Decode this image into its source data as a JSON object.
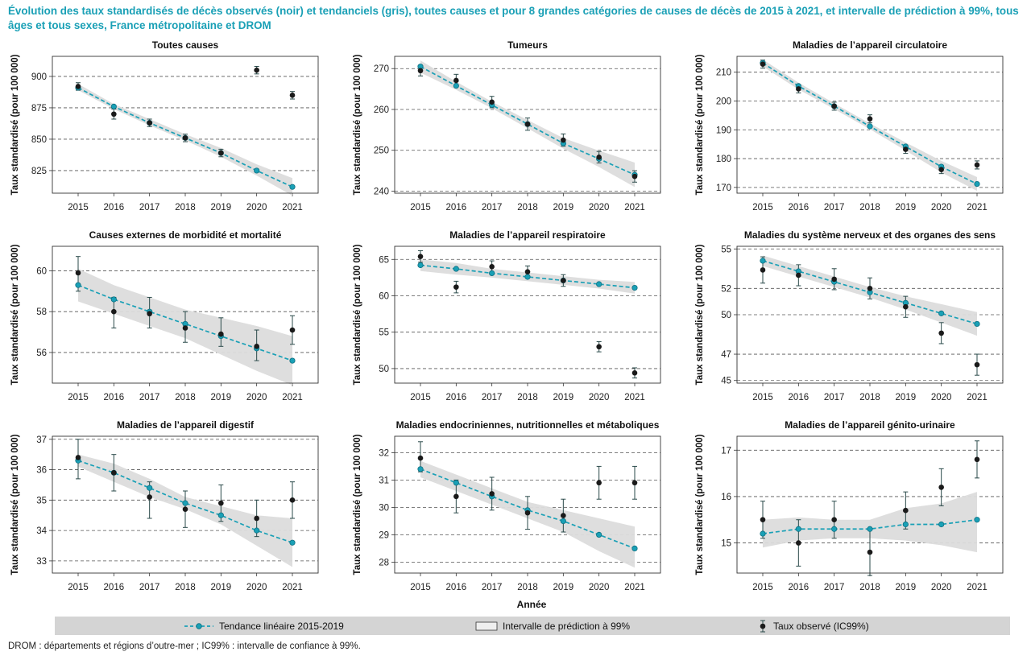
{
  "title": "Évolution des taux standardisés de décès observés (noir) et tendanciels (gris), toutes causes et pour 8 grandes catégories de causes de décès de 2015 à 2021, et intervalle de prédiction à 99%, tous âges et tous sexes, France métropolitaine et DROM",
  "x_axis_label": "Année",
  "colors": {
    "accent": "#1aa0b6",
    "trend": "#1aa0b6",
    "band": "#dcdcdc",
    "observed": "#1a1a1a",
    "error_bar": "#2a4a4a",
    "legend_bg": "#d4d4d4"
  },
  "legend": {
    "trend": "Tendance linéaire 2015-2019",
    "band": "Intervalle de prédiction à 99%",
    "observed": "Taux observé (IC99%)"
  },
  "footnote": "DROM : départements et régions d’outre-mer ; IC99% : intervalle de confiance à 99%.",
  "chart_data": [
    {
      "type": "line",
      "title": "Toutes causes",
      "ylabel": "Taux standardisé (pour 100 000)",
      "x": [
        2015,
        2016,
        2017,
        2018,
        2019,
        2020,
        2021
      ],
      "ylim": [
        807,
        916
      ],
      "yticks": [
        825,
        850,
        875,
        900
      ],
      "trend": [
        891,
        876,
        863,
        851,
        839,
        825,
        812
      ],
      "band_low": [
        889,
        874,
        861,
        849,
        836,
        821,
        805
      ],
      "band_high": [
        894,
        878,
        866,
        854,
        843,
        830,
        819
      ],
      "observed": [
        892,
        870,
        863,
        851,
        839,
        905,
        885
      ],
      "ci_low": [
        889,
        866,
        860,
        848,
        836,
        902,
        882
      ],
      "ci_high": [
        895,
        874,
        866,
        854,
        842,
        908,
        888
      ]
    },
    {
      "type": "line",
      "title": "Tumeurs",
      "ylabel": "Taux standardisé (pour 100 000)",
      "x": [
        2015,
        2016,
        2017,
        2018,
        2019,
        2020,
        2021
      ],
      "ylim": [
        239.5,
        273
      ],
      "yticks": [
        240,
        250,
        260,
        270
      ],
      "trend": [
        270.5,
        265.8,
        261.1,
        256.4,
        251.7,
        247.9,
        244
      ],
      "band_low": [
        269,
        264.8,
        260.3,
        255.4,
        250.4,
        245.9,
        241
      ],
      "band_high": [
        272,
        266.8,
        261.9,
        257.4,
        253,
        249.9,
        247
      ],
      "observed": [
        269.5,
        267.1,
        261.8,
        256.4,
        252.5,
        248.3,
        243.6
      ],
      "ci_low": [
        268.2,
        265.6,
        260.4,
        254.9,
        251,
        246.9,
        242.2
      ],
      "ci_high": [
        270.8,
        268.6,
        263.2,
        257.9,
        254,
        249.7,
        245
      ]
    },
    {
      "type": "line",
      "title": "Maladies de l’appareil circulatoire",
      "ylabel": "Taux standardisé (pour 100 000)",
      "x": [
        2015,
        2016,
        2017,
        2018,
        2019,
        2020,
        2021
      ],
      "ylim": [
        168,
        215.5
      ],
      "yticks": [
        170,
        180,
        190,
        200,
        210
      ],
      "trend": [
        213.2,
        205.2,
        198.2,
        191.2,
        184.2,
        177.2,
        171.2
      ],
      "band_low": [
        212,
        204,
        197.2,
        190.2,
        182.8,
        175.2,
        168.8
      ],
      "band_high": [
        214.4,
        206.4,
        199.2,
        192.2,
        185.6,
        179.2,
        173.6
      ],
      "observed": [
        212.8,
        204.2,
        198.2,
        193.8,
        183.2,
        176.2,
        177.8
      ],
      "ci_low": [
        211.4,
        202.8,
        196.8,
        192.4,
        181.8,
        174.8,
        176.4
      ],
      "ci_high": [
        214.2,
        205.6,
        199.6,
        195.2,
        184.6,
        177.6,
        179.2
      ]
    },
    {
      "type": "line",
      "title": "Causes externes de morbidité et mortalité",
      "ylabel": "Taux standardisé (pour 100 000)",
      "x": [
        2015,
        2016,
        2017,
        2018,
        2019,
        2020,
        2021
      ],
      "ylim": [
        54.5,
        61.2
      ],
      "yticks": [
        56,
        58,
        60
      ],
      "trend": [
        59.3,
        58.6,
        58,
        57.4,
        56.8,
        56.2,
        55.6
      ],
      "band_low": [
        58.5,
        57.9,
        57.3,
        56.7,
        55.9,
        55.1,
        54.4
      ],
      "band_high": [
        60.1,
        59.3,
        58.7,
        58.1,
        57.7,
        57.3,
        56.8
      ],
      "observed": [
        59.9,
        58,
        57.9,
        57.2,
        56.9,
        56.3,
        57.1
      ],
      "ci_low": [
        59,
        57.2,
        57.2,
        56.5,
        56.3,
        55.6,
        56.4
      ],
      "ci_high": [
        60.7,
        58.7,
        58.7,
        58,
        57.7,
        57.1,
        57.8
      ]
    },
    {
      "type": "line",
      "title": "Maladies de l’appareil respiratoire",
      "ylabel": "Taux standardisé (pour 100 000)",
      "x": [
        2015,
        2016,
        2017,
        2018,
        2019,
        2020,
        2021
      ],
      "ylim": [
        48,
        66.8
      ],
      "yticks": [
        50,
        55,
        60,
        65
      ],
      "trend": [
        64.2,
        63.7,
        63.1,
        62.6,
        62.1,
        61.6,
        61.1
      ],
      "band_low": [
        63.4,
        62.9,
        62.5,
        62,
        61.5,
        61,
        60.3
      ],
      "band_high": [
        65,
        64.5,
        63.7,
        63.2,
        62.7,
        62.2,
        61.9
      ],
      "observed": [
        65.4,
        61.2,
        64,
        63.3,
        62.1,
        53,
        49.4
      ],
      "ci_low": [
        64.6,
        60.4,
        63.2,
        62.5,
        61.3,
        52.3,
        48.7
      ],
      "ci_high": [
        66.2,
        62,
        64.8,
        64.1,
        62.9,
        53.7,
        50.1
      ]
    },
    {
      "type": "line",
      "title": "Maladies du système nerveux et des organes des sens",
      "ylabel": "Taux standardisé (pour 100 000)",
      "x": [
        2015,
        2016,
        2017,
        2018,
        2019,
        2020,
        2021
      ],
      "ylim": [
        44.8,
        55.2
      ],
      "yticks": [
        45,
        47,
        50,
        52,
        55
      ],
      "yticklabels": [
        "45",
        "47",
        "50",
        "52",
        "55"
      ],
      "trend": [
        54.1,
        53.3,
        52.5,
        51.7,
        50.9,
        50.1,
        49.3
      ],
      "band_low": [
        53.7,
        52.9,
        52.1,
        51.3,
        50.4,
        49.4,
        48.4
      ],
      "band_high": [
        54.5,
        53.7,
        52.9,
        52.1,
        51.4,
        50.8,
        50.2
      ],
      "observed": [
        53.4,
        53,
        52.7,
        52,
        50.6,
        48.6,
        46.2
      ],
      "ci_low": [
        52.4,
        52.2,
        51.9,
        51.2,
        49.8,
        47.8,
        45.4
      ],
      "ci_high": [
        54.4,
        53.8,
        53.5,
        52.8,
        51.4,
        49.4,
        47
      ]
    },
    {
      "type": "line",
      "title": "Maladies de l’appareil digestif",
      "ylabel": "Taux standardisé (pour 100 000)",
      "x": [
        2015,
        2016,
        2017,
        2018,
        2019,
        2020,
        2021
      ],
      "ylim": [
        32.6,
        37.1
      ],
      "yticks": [
        33,
        34,
        35,
        36,
        37
      ],
      "trend": [
        36.3,
        35.9,
        35.4,
        34.9,
        34.5,
        34,
        33.6
      ],
      "band_low": [
        36.1,
        35.6,
        35.1,
        34.7,
        34.2,
        33.5,
        32.8
      ],
      "band_high": [
        36.5,
        36.2,
        35.7,
        35.1,
        34.8,
        34.5,
        34.4
      ],
      "observed": [
        36.4,
        35.9,
        35.1,
        34.7,
        34.9,
        34.4,
        35
      ],
      "ci_low": [
        35.7,
        35.3,
        34.4,
        34.1,
        34.3,
        33.8,
        34.4
      ],
      "ci_high": [
        37,
        36.5,
        35.6,
        35.3,
        35.5,
        35,
        35.6
      ]
    },
    {
      "type": "line",
      "title": "Maladies endocriniennes, nutritionnelles et métaboliques",
      "ylabel": "Taux standardisé (pour 100 000)",
      "x": [
        2015,
        2016,
        2017,
        2018,
        2019,
        2020,
        2021
      ],
      "ylim": [
        27.6,
        32.6
      ],
      "yticks": [
        28,
        29,
        30,
        31,
        32
      ],
      "trend": [
        31.4,
        30.9,
        30.4,
        29.9,
        29.5,
        29,
        28.5
      ],
      "band_low": [
        31.1,
        30.6,
        30.1,
        29.6,
        29.1,
        28.4,
        27.8
      ],
      "band_high": [
        31.7,
        31.2,
        30.7,
        30.2,
        29.9,
        29.6,
        29.3
      ],
      "observed": [
        31.8,
        30.4,
        30.5,
        29.8,
        29.7,
        30.9,
        30.9
      ],
      "ci_low": [
        31.3,
        29.8,
        29.9,
        29.2,
        29.1,
        30.3,
        30.3
      ],
      "ci_high": [
        32.4,
        31,
        31.1,
        30.4,
        30.3,
        31.5,
        31.5
      ]
    },
    {
      "type": "line",
      "title": "Maladies de l’appareil génito-urinaire",
      "ylabel": "Taux standardisé (pour 100 000)",
      "x": [
        2015,
        2016,
        2017,
        2018,
        2019,
        2020,
        2021
      ],
      "ylim": [
        14.35,
        17.3
      ],
      "yticks": [
        15,
        16,
        17
      ],
      "trend": [
        15.2,
        15.3,
        15.3,
        15.3,
        15.4,
        15.4,
        15.5
      ],
      "band_low": [
        14.9,
        15.05,
        15.1,
        15.1,
        15.05,
        14.95,
        14.8
      ],
      "band_high": [
        15.5,
        15.55,
        15.5,
        15.5,
        15.75,
        15.85,
        16.1
      ],
      "observed": [
        15.5,
        15,
        15.5,
        14.8,
        15.7,
        16.2,
        16.8
      ],
      "ci_low": [
        15.1,
        14.5,
        15.1,
        14.3,
        15.3,
        15.8,
        16.4
      ],
      "ci_high": [
        15.9,
        15.5,
        15.9,
        15.3,
        16.1,
        16.6,
        17.2
      ]
    }
  ]
}
